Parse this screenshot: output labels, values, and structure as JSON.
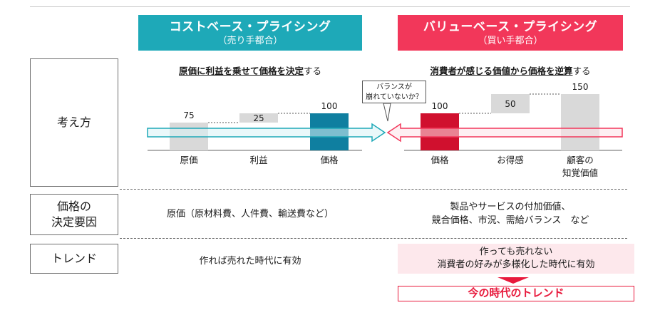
{
  "headers": {
    "cost": {
      "title": "コストベース・プライシング",
      "subtitle": "（売り手都合）",
      "color": "#1ea9b8"
    },
    "value": {
      "title": "バリューベース・プライシング",
      "subtitle": "（買い手都合）",
      "color": "#f2375a"
    }
  },
  "rows": {
    "think": "考え方",
    "factor": "価格の\n決定要因",
    "trend": "トレンド"
  },
  "think": {
    "cost_strong": "原価に利益を乗せて価格を決定",
    "cost_suffix": "する",
    "value_strong": "消費者が感じる価値から価格を逆算",
    "value_suffix": "する",
    "callout": "バランスが\n崩れていないか？",
    "cost_chart": {
      "bars": [
        {
          "label": "原価",
          "value": "75",
          "color": "#d9d9d9"
        },
        {
          "label": "利益",
          "value": "25",
          "color": "#d9d9d9"
        },
        {
          "label": "価格",
          "value": "100",
          "color": "#0f7fa0"
        }
      ]
    },
    "value_chart": {
      "bars": [
        {
          "label": "価格",
          "value": "100",
          "color": "#d0102e"
        },
        {
          "label": "お得感",
          "value": "50",
          "color": "#d9d9d9"
        },
        {
          "label": "顧客の",
          "label2": "知覚価値",
          "value": "150",
          "color": "#d9d9d9"
        }
      ]
    }
  },
  "factor": {
    "cost": "原価（原材料費、人件費、輸送費など）",
    "value_line1": "製品やサービスの付加価値、",
    "value_line2": "競合価格、市況、需給バランス　など"
  },
  "trend": {
    "cost": "作れば売れた時代に有効",
    "value_line1": "作っても売れない",
    "value_line2": "消費者の好みが多様化した時代に有効",
    "today": "今の時代のトレンド"
  }
}
